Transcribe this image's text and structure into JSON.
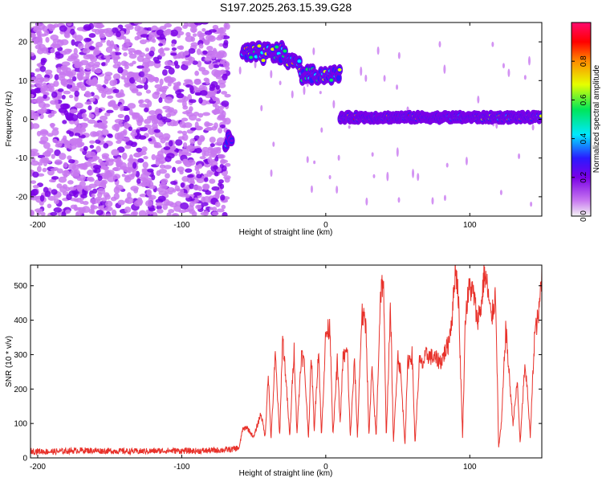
{
  "title": "S197.2025.263.15.39.G28",
  "colors": {
    "snr_line": "#e8312a",
    "colorbar": [
      "#f4f4f4",
      "#c878f0",
      "#7a00e6",
      "#2a1aff",
      "#00e8ff",
      "#00e65a",
      "#e6ff00",
      "#ff8c00",
      "#ff0000",
      "#ff0a6e"
    ]
  },
  "chart_data": [
    {
      "type": "heatmap",
      "title": "S197.2025.263.15.39.G28",
      "xlabel": "Height of straight line (km)",
      "ylabel": "Frequency (Hz)",
      "xlim": [
        -205,
        150
      ],
      "ylim": [
        -25,
        25
      ],
      "xticks": [
        -200,
        -100,
        0,
        100
      ],
      "yticks": [
        -20,
        -10,
        0,
        10,
        20
      ],
      "colorbar": {
        "label": "Normalized spectral amplitude",
        "range": [
          0,
          1
        ],
        "ticks": [
          0.0,
          0.2,
          0.4,
          0.6,
          0.8
        ]
      },
      "noise_region_km": [
        -205,
        -68
      ],
      "signal_segments": [
        {
          "x": [
            -70,
            -65
          ],
          "freq_hz": [
            -8,
            -4
          ],
          "peak_amplitude": 0.45
        },
        {
          "x": [
            -58,
            -28
          ],
          "freq_hz": [
            15,
            19
          ],
          "peak_amplitude": 0.75
        },
        {
          "x": [
            -28,
            -18
          ],
          "freq_hz": [
            14,
            16
          ],
          "peak_amplitude": 0.85
        },
        {
          "x": [
            -18,
            10
          ],
          "freq_hz": [
            10,
            13
          ],
          "peak_amplitude": 0.7
        },
        {
          "x": [
            10,
            150
          ],
          "freq_hz": [
            0,
            1
          ],
          "peak_amplitude": 0.95
        }
      ]
    },
    {
      "type": "line",
      "xlabel": "Height of straight line (km)",
      "ylabel": "SNR (10 * v/v)",
      "xlim": [
        -205,
        150
      ],
      "ylim": [
        0,
        560
      ],
      "xticks": [
        -200,
        -100,
        0,
        100
      ],
      "yticks": [
        0,
        100,
        200,
        300,
        400,
        500
      ],
      "series": [
        {
          "name": "SNR",
          "x": [
            -205,
            -190,
            -170,
            -150,
            -130,
            -110,
            -90,
            -75,
            -65,
            -60,
            -58,
            -55,
            -50,
            -45,
            -42,
            -40,
            -38,
            -35,
            -32,
            -30,
            -28,
            -25,
            -22,
            -20,
            -17,
            -15,
            -12,
            -10,
            -8,
            -5,
            -3,
            0,
            3,
            5,
            8,
            10,
            12,
            15,
            17,
            20,
            22,
            25,
            28,
            30,
            32,
            35,
            38,
            40,
            42,
            45,
            47,
            50,
            52,
            55,
            57,
            60,
            62,
            65,
            67,
            70,
            75,
            80,
            85,
            88,
            90,
            92,
            95,
            97,
            100,
            103,
            105,
            108,
            110,
            112,
            115,
            118,
            120,
            122,
            125,
            127,
            130,
            133,
            135,
            138,
            140,
            142,
            145,
            148,
            150
          ],
          "y": [
            20,
            18,
            22,
            20,
            19,
            21,
            20,
            22,
            25,
            30,
            80,
            90,
            60,
            130,
            60,
            250,
            55,
            300,
            60,
            350,
            250,
            60,
            320,
            70,
            300,
            280,
            60,
            300,
            80,
            320,
            60,
            360,
            380,
            60,
            280,
            100,
            290,
            310,
            60,
            280,
            60,
            420,
            380,
            60,
            260,
            60,
            480,
            520,
            60,
            440,
            40,
            300,
            250,
            40,
            280,
            300,
            40,
            280,
            270,
            300,
            290,
            280,
            330,
            420,
            560,
            480,
            60,
            420,
            500,
            470,
            400,
            440,
            540,
            500,
            400,
            480,
            30,
            100,
            380,
            260,
            100,
            220,
            40,
            260,
            200,
            60,
            360,
            420,
            540
          ]
        }
      ]
    }
  ]
}
